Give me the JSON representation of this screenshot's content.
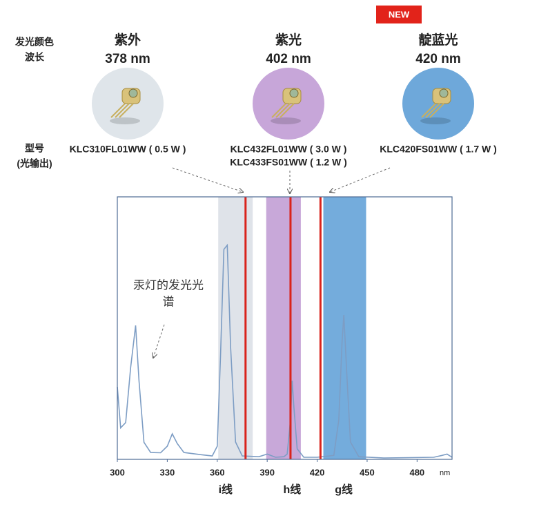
{
  "header": {
    "row_labels": [
      "发光颜色",
      "波长",
      "型号",
      "(光输出)"
    ],
    "badge": "NEW",
    "products": [
      {
        "name": "紫外",
        "wavelength": "378 nm",
        "color": "#dfe5ea",
        "models": [
          "KLC310FL01WW ( 0.5 W )"
        ]
      },
      {
        "name": "紫光",
        "wavelength": "402 nm",
        "color": "#c7a6d9",
        "models": [
          "KLC432FL01WW ( 3.0 W )",
          "KLC433FS01WW ( 1.2 W )"
        ]
      },
      {
        "name": "靛蓝光",
        "wavelength": "420 nm",
        "color": "#6ea8da",
        "models": [
          "KLC420FS01WW ( 1.7 W )"
        ]
      }
    ]
  },
  "chart_data": {
    "type": "line",
    "color": "#7d9dc4",
    "x": [
      300,
      302,
      305,
      308,
      311,
      313,
      316,
      320,
      326,
      330,
      333,
      336,
      340,
      350,
      357,
      360,
      362,
      364,
      366,
      368,
      371,
      375,
      385,
      390,
      395,
      400,
      402,
      404,
      405,
      406,
      408,
      412,
      420,
      430,
      433,
      435,
      436,
      438,
      440,
      445,
      460,
      490,
      495,
      498,
      501
    ],
    "values": [
      27.6,
      12,
      14,
      35,
      51,
      30,
      6.5,
      2.6,
      2.5,
      5,
      9.7,
      6,
      2.6,
      1.8,
      1.3,
      5,
      40,
      80,
      81.6,
      43,
      6.6,
      1.3,
      1,
      2,
      0.8,
      1,
      2,
      15,
      30,
      20,
      4,
      0.8,
      0.8,
      1.5,
      15,
      45,
      55,
      30,
      6.6,
      1,
      0.5,
      0.8,
      1.5,
      2,
      0.8
    ],
    "xlim": [
      300,
      501
    ],
    "ylim": [
      0,
      100
    ],
    "xticks": [
      300,
      330,
      360,
      390,
      420,
      450,
      480
    ],
    "x_unit": "nm",
    "bands": [
      {
        "from": 360.6,
        "to": 381.3,
        "color": "#dfe3e9"
      },
      {
        "from": 389.4,
        "to": 410.2,
        "color": "#c8a8d9"
      },
      {
        "from": 423.7,
        "to": 449.4,
        "color": "#74acdc"
      }
    ],
    "laser_lines": [
      {
        "value": 377,
        "color": "#d9231c"
      },
      {
        "value": 404,
        "color": "#d9231c"
      },
      {
        "value": 422,
        "color": "#d9231c"
      }
    ],
    "line_labels": [
      {
        "value": 365,
        "label": "i线"
      },
      {
        "value": 405,
        "label": "h线"
      },
      {
        "value": 436,
        "label": "g线"
      }
    ],
    "annotation": [
      "汞灯的发光光",
      "谱"
    ]
  }
}
